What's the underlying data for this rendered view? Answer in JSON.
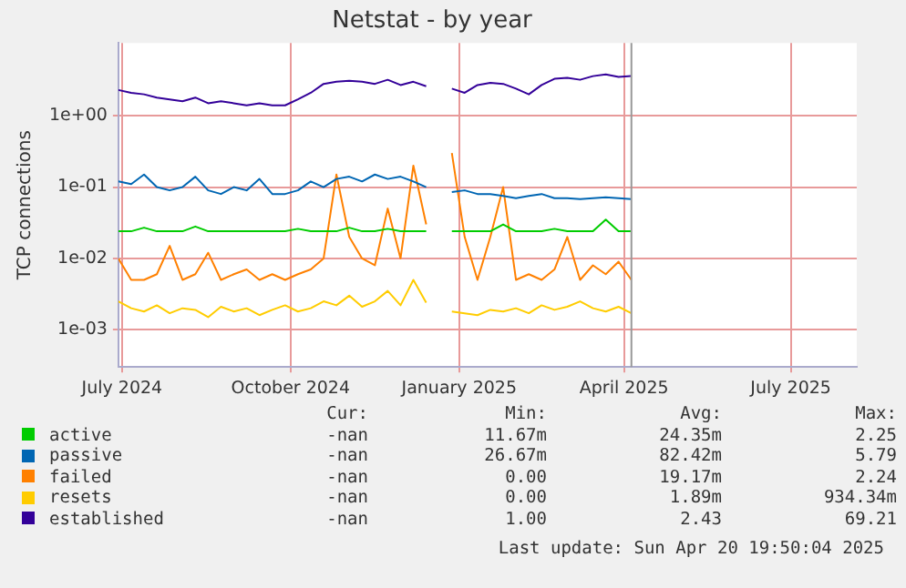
{
  "chart_data": {
    "type": "line",
    "title": "Netstat - by year",
    "ylabel": "TCP connections",
    "log": "y",
    "grid": true,
    "legend": "bottom",
    "marker": "none",
    "line_style": "solid",
    "x": [
      "2024-06-29",
      "2024-07-06",
      "2024-07-13",
      "2024-07-20",
      "2024-07-27",
      "2024-08-03",
      "2024-08-10",
      "2024-08-17",
      "2024-08-24",
      "2024-08-31",
      "2024-09-07",
      "2024-09-14",
      "2024-09-21",
      "2024-09-28",
      "2024-10-05",
      "2024-10-12",
      "2024-10-19",
      "2024-10-26",
      "2024-11-02",
      "2024-11-09",
      "2024-11-16",
      "2024-11-23",
      "2024-11-30",
      "2024-12-07",
      "2024-12-14",
      "2024-12-21",
      "2024-12-28",
      "2025-01-04",
      "2025-01-11",
      "2025-01-18",
      "2025-01-25",
      "2025-02-01",
      "2025-02-08",
      "2025-02-15",
      "2025-02-22",
      "2025-03-01",
      "2025-03-08",
      "2025-03-15",
      "2025-03-22",
      "2025-03-29",
      "2025-04-05"
    ],
    "xlim": [
      "2024-06-29",
      "2025-08-06"
    ],
    "xticks": [
      {
        "value": "2024-07-01",
        "label": "July 2024"
      },
      {
        "value": "2024-10-01",
        "label": "October 2024"
      },
      {
        "value": "2025-01-01",
        "label": "January 2025"
      },
      {
        "value": "2025-04-01",
        "label": "April 2025"
      },
      {
        "value": "2025-07-01",
        "label": "July 2025"
      }
    ],
    "ylim": [
      0.00034,
      10.5
    ],
    "yticks": [
      {
        "value": 0.001,
        "label": "1e-03"
      },
      {
        "value": 0.01,
        "label": "1e-02"
      },
      {
        "value": 0.1,
        "label": "1e-01"
      },
      {
        "value": 1,
        "label": "1e+00"
      }
    ],
    "ref_lines": [
      {
        "axis": "x",
        "value": "2025-04-05",
        "label": null,
        "color": "#999999"
      }
    ],
    "series": [
      {
        "name": "active",
        "color": "#00cc00",
        "values": [
          0.024,
          0.024,
          0.027,
          0.024,
          0.024,
          0.024,
          0.028,
          0.024,
          0.024,
          0.024,
          0.024,
          0.024,
          0.024,
          0.024,
          0.026,
          0.024,
          0.024,
          0.024,
          0.027,
          0.024,
          0.024,
          0.026,
          0.024,
          0.024,
          0.024,
          null,
          0.024,
          0.024,
          0.024,
          0.024,
          0.03,
          0.024,
          0.024,
          0.024,
          0.026,
          0.024,
          0.024,
          0.024,
          0.035,
          0.024,
          0.024
        ]
      },
      {
        "name": "passive",
        "color": "#0066b3",
        "values": [
          0.12,
          0.11,
          0.15,
          0.1,
          0.09,
          0.1,
          0.14,
          0.09,
          0.08,
          0.1,
          0.09,
          0.13,
          0.08,
          0.08,
          0.09,
          0.12,
          0.1,
          0.13,
          0.14,
          0.12,
          0.15,
          0.13,
          0.14,
          0.12,
          0.1,
          null,
          0.085,
          0.09,
          0.08,
          0.08,
          0.075,
          0.07,
          0.075,
          0.08,
          0.07,
          0.07,
          0.068,
          0.07,
          0.072,
          0.07,
          0.068
        ]
      },
      {
        "name": "failed",
        "color": "#ff8000",
        "values": [
          0.01,
          0.005,
          0.005,
          0.006,
          0.015,
          0.005,
          0.006,
          0.012,
          0.005,
          0.006,
          0.007,
          0.005,
          0.006,
          0.005,
          0.006,
          0.007,
          0.01,
          0.15,
          0.02,
          0.01,
          0.008,
          0.05,
          0.01,
          0.2,
          0.03,
          null,
          0.3,
          0.02,
          0.005,
          0.02,
          0.1,
          0.005,
          0.006,
          0.005,
          0.007,
          0.02,
          0.005,
          0.008,
          0.006,
          0.009,
          0.005
        ]
      },
      {
        "name": "resets",
        "color": "#ffcc00",
        "values": [
          0.0025,
          0.002,
          0.0018,
          0.0022,
          0.0017,
          0.002,
          0.0019,
          0.0015,
          0.0021,
          0.0018,
          0.002,
          0.0016,
          0.0019,
          0.0022,
          0.0018,
          0.002,
          0.0025,
          0.0022,
          0.003,
          0.0021,
          0.0025,
          0.0035,
          0.0022,
          0.005,
          0.0024,
          null,
          0.0018,
          0.0017,
          0.0016,
          0.0019,
          0.0018,
          0.002,
          0.0017,
          0.0022,
          0.0019,
          0.0021,
          0.0025,
          0.002,
          0.0018,
          0.0021,
          0.0017
        ]
      },
      {
        "name": "established",
        "color": "#330099",
        "values": [
          2.3,
          2.1,
          2.0,
          1.8,
          1.7,
          1.6,
          1.8,
          1.5,
          1.6,
          1.5,
          1.4,
          1.5,
          1.4,
          1.4,
          1.7,
          2.1,
          2.8,
          3.0,
          3.1,
          3.0,
          2.8,
          3.2,
          2.7,
          3.0,
          2.6,
          null,
          2.4,
          2.1,
          2.7,
          2.9,
          2.8,
          2.4,
          2.0,
          2.7,
          3.3,
          3.4,
          3.2,
          3.6,
          3.8,
          3.5,
          3.6
        ]
      }
    ],
    "annotations": [
      "Cur:",
      "Min:",
      "Avg:",
      "Max:",
      "-nan",
      "11.67m",
      "24.35m",
      "2.25",
      "-nan",
      "26.67m",
      "82.42m",
      "5.79",
      "-nan",
      "0.00",
      "19.17m",
      "2.24",
      "-nan",
      "0.00",
      "1.89m",
      "934.34m",
      "-nan",
      "1.00",
      "2.43",
      "69.21",
      "Last update: Sun Apr 20 19:50:04 2025"
    ]
  }
}
